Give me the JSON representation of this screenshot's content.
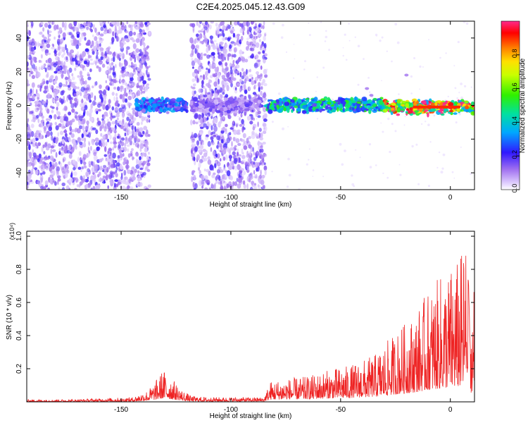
{
  "title": "C2E4.2025.045.12.43.G09",
  "colors": {
    "snr_line": "#ee2222",
    "noise_purple": "#7a2cf0",
    "colorbar": [
      "#d8c6ff",
      "#8a2be2",
      "#2020ff",
      "#00ccff",
      "#00e070",
      "#80ff00",
      "#ffff00",
      "#ff8000",
      "#ff0000",
      "#ff1a90"
    ]
  },
  "chart_data": [
    {
      "type": "heatmap",
      "xlabel": "Height of straight line (km)",
      "ylabel": "Frequency (Hz)",
      "xlim": [
        -193,
        11
      ],
      "ylim": [
        -50,
        50
      ],
      "xticks": [
        -150,
        -100,
        -50,
        0
      ],
      "yticks": [
        -40,
        -20,
        0,
        20,
        40
      ],
      "colorbar": {
        "label": "Normalized spectral amplitude",
        "range": [
          0,
          1
        ],
        "ticks": [
          0.0,
          0.2,
          0.4,
          0.6,
          0.8
        ]
      },
      "noise_regions_x": [
        [
          -193,
          -137
        ],
        [
          -118,
          -84
        ]
      ],
      "signal_band": {
        "segments": [
          {
            "x": [
              -143,
              -120
            ],
            "center_hz": 0,
            "amplitude": 0.3
          },
          {
            "x": [
              -118,
              -86
            ],
            "center_hz": 0,
            "amplitude": 0.15
          },
          {
            "x": [
              -84,
              -30
            ],
            "center_hz": 0,
            "amplitude": 0.45
          },
          {
            "x": [
              -30,
              11
            ],
            "center_hz": -1,
            "amplitude": 0.85
          }
        ]
      }
    },
    {
      "type": "line",
      "xlabel": "Height of straight line (km)",
      "ylabel": "SNR (10 * v/v)",
      "y_multiplier": "(x10⁴)",
      "xlim": [
        -193,
        11
      ],
      "ylim": [
        0,
        1.03
      ],
      "xticks": [
        -150,
        -100,
        -50,
        0
      ],
      "yticks": [
        0.2,
        0.4,
        0.6,
        0.8,
        1.0
      ],
      "series": [
        {
          "x": [
            -193,
            -175,
            -160,
            -145,
            -138,
            -135,
            -131,
            -128,
            -125,
            -122,
            -118,
            -110,
            -100,
            -90,
            -85,
            -82,
            -75,
            -65,
            -55,
            -45,
            -35,
            -28,
            -22,
            -16,
            -12,
            -8,
            -4,
            0,
            4,
            7,
            8,
            9,
            10,
            11
          ],
          "y": [
            0.01,
            0.01,
            0.015,
            0.02,
            0.05,
            0.08,
            0.14,
            0.12,
            0.08,
            0.05,
            0.025,
            0.02,
            0.02,
            0.02,
            0.02,
            0.09,
            0.1,
            0.11,
            0.14,
            0.16,
            0.2,
            0.27,
            0.33,
            0.38,
            0.45,
            0.5,
            0.55,
            0.58,
            0.62,
            0.7,
            0.85,
            0.3,
            0.45,
            0.6
          ]
        }
      ]
    }
  ]
}
